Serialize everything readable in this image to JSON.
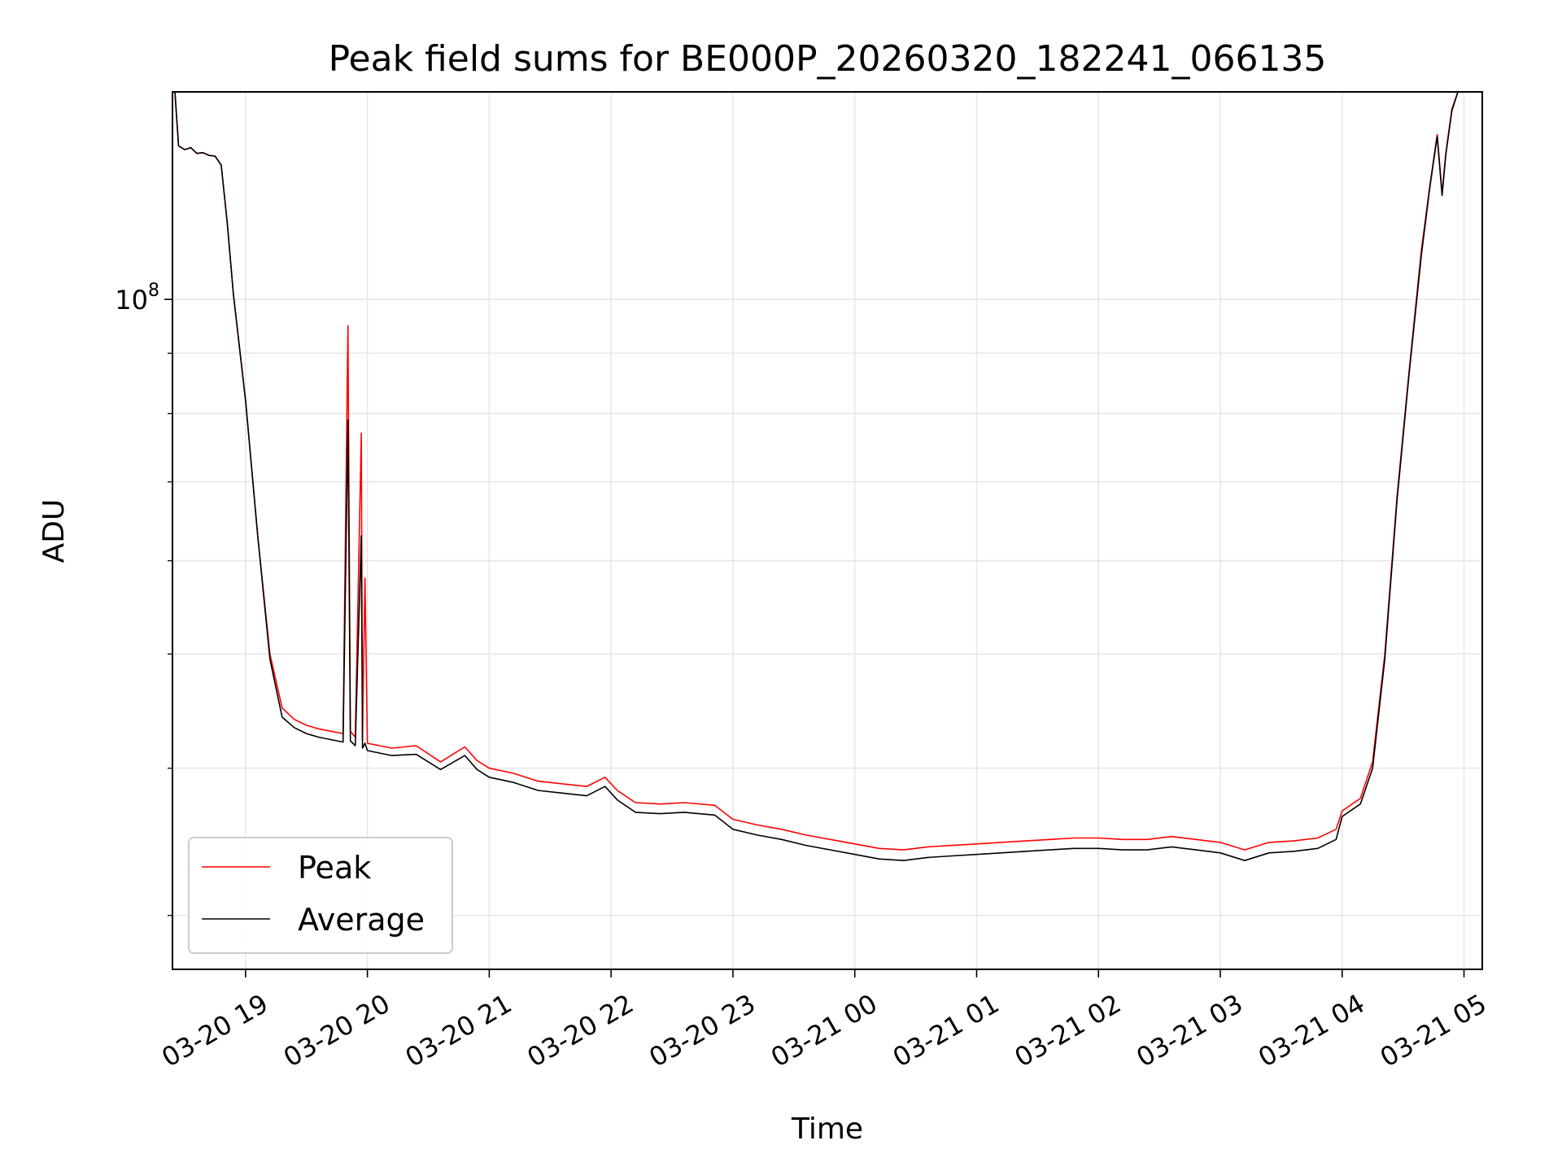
{
  "chart_data": {
    "type": "line",
    "title": "Peak field sums for BE000P_20260320_182241_066135",
    "xlabel": "Time",
    "ylabel": "ADU",
    "yscale": "log",
    "ylim": [
      27000000,
      150000000
    ],
    "xlim_hours": [
      -0.6,
      10.15
    ],
    "y_tick_major": [
      {
        "value": 100000000,
        "base": "10",
        "exp": "8"
      }
    ],
    "y_tick_minor": [
      30000000,
      40000000,
      50000000,
      60000000,
      70000000,
      80000000,
      90000000
    ],
    "x_ticks": [
      {
        "hours": 0,
        "label": "03-20 19"
      },
      {
        "hours": 1,
        "label": "03-20 20"
      },
      {
        "hours": 2,
        "label": "03-20 21"
      },
      {
        "hours": 3,
        "label": "03-20 22"
      },
      {
        "hours": 4,
        "label": "03-20 23"
      },
      {
        "hours": 5,
        "label": "03-21 00"
      },
      {
        "hours": 6,
        "label": "03-21 01"
      },
      {
        "hours": 7,
        "label": "03-21 02"
      },
      {
        "hours": 8,
        "label": "03-21 03"
      },
      {
        "hours": 9,
        "label": "03-21 04"
      },
      {
        "hours": 10,
        "label": "03-21 05"
      }
    ],
    "legend_position": "lower-left",
    "grid": true,
    "series": [
      {
        "name": "Peak",
        "color": "#ff0000",
        "note": "hours relative to 03-20 19:00",
        "x": [
          -0.58,
          -0.55,
          -0.5,
          -0.45,
          -0.4,
          -0.35,
          -0.3,
          -0.25,
          -0.2,
          -0.15,
          -0.1,
          0.0,
          0.1,
          0.2,
          0.3,
          0.4,
          0.5,
          0.6,
          0.7,
          0.8,
          0.84,
          0.86,
          0.9,
          0.95,
          0.96,
          0.98,
          1.0,
          1.2,
          1.4,
          1.6,
          1.8,
          1.9,
          2.0,
          2.2,
          2.4,
          2.6,
          2.8,
          2.95,
          3.05,
          3.2,
          3.4,
          3.6,
          3.85,
          4.0,
          4.2,
          4.4,
          4.6,
          4.8,
          5.0,
          5.2,
          5.4,
          5.6,
          5.8,
          6.0,
          6.2,
          6.4,
          6.6,
          6.8,
          7.0,
          7.2,
          7.4,
          7.6,
          7.8,
          8.0,
          8.2,
          8.4,
          8.6,
          8.8,
          8.95,
          9.0,
          9.15,
          9.25,
          9.35,
          9.45,
          9.55,
          9.65,
          9.72,
          9.78,
          9.82,
          9.85,
          9.9,
          9.95
        ],
        "y": [
          150000000,
          135000000,
          134000000,
          134500000,
          133000000,
          133200000,
          132500000,
          132300000,
          130000000,
          116000000,
          101000000,
          82000000,
          63000000,
          50000000,
          45000000,
          44000000,
          43500000,
          43200000,
          43000000,
          42800000,
          95000000,
          43000000,
          42500000,
          77000000,
          42300000,
          58000000,
          42000000,
          41600000,
          41800000,
          40500000,
          41700000,
          40600000,
          40000000,
          39600000,
          39000000,
          38800000,
          38600000,
          39300000,
          38300000,
          37400000,
          37300000,
          37400000,
          37200000,
          36200000,
          35800000,
          35500000,
          35100000,
          34800000,
          34500000,
          34200000,
          34100000,
          34300000,
          34400000,
          34500000,
          34600000,
          34700000,
          34800000,
          34900000,
          34900000,
          34800000,
          34800000,
          35000000,
          34800000,
          34600000,
          34100000,
          34600000,
          34700000,
          34900000,
          35500000,
          36800000,
          37700000,
          40500000,
          50000000,
          68000000,
          87000000,
          110000000,
          125000000,
          138000000,
          123000000,
          133000000,
          145000000,
          150000000
        ]
      },
      {
        "name": "Average",
        "color": "#000000",
        "note": "hours relative to 03-20 19:00",
        "x": [
          -0.58,
          -0.55,
          -0.5,
          -0.45,
          -0.4,
          -0.35,
          -0.3,
          -0.25,
          -0.2,
          -0.15,
          -0.1,
          0.0,
          0.1,
          0.2,
          0.3,
          0.4,
          0.5,
          0.6,
          0.7,
          0.8,
          0.84,
          0.86,
          0.9,
          0.95,
          0.96,
          0.98,
          1.0,
          1.2,
          1.4,
          1.6,
          1.8,
          1.9,
          2.0,
          2.2,
          2.4,
          2.6,
          2.8,
          2.95,
          3.05,
          3.2,
          3.4,
          3.6,
          3.85,
          4.0,
          4.2,
          4.4,
          4.6,
          4.8,
          5.0,
          5.2,
          5.4,
          5.6,
          5.8,
          6.0,
          6.2,
          6.4,
          6.6,
          6.8,
          7.0,
          7.2,
          7.4,
          7.6,
          7.8,
          8.0,
          8.2,
          8.4,
          8.6,
          8.8,
          8.95,
          9.0,
          9.15,
          9.25,
          9.35,
          9.45,
          9.55,
          9.65,
          9.72,
          9.78,
          9.82,
          9.85,
          9.9,
          9.95
        ],
        "y": [
          150000000,
          135000000,
          134000000,
          134500000,
          133000000,
          133200000,
          132500000,
          132300000,
          130000000,
          116000000,
          101000000,
          82000000,
          63000000,
          49500000,
          44200000,
          43300000,
          42800000,
          42500000,
          42300000,
          42100000,
          79000000,
          42200000,
          41800000,
          63000000,
          41600000,
          42000000,
          41400000,
          41000000,
          41100000,
          39900000,
          41000000,
          39900000,
          39300000,
          38900000,
          38300000,
          38100000,
          37900000,
          38600000,
          37600000,
          36700000,
          36600000,
          36700000,
          36500000,
          35500000,
          35100000,
          34800000,
          34400000,
          34100000,
          33800000,
          33500000,
          33400000,
          33600000,
          33700000,
          33800000,
          33900000,
          34000000,
          34100000,
          34200000,
          34200000,
          34100000,
          34100000,
          34300000,
          34100000,
          33900000,
          33400000,
          33900000,
          34000000,
          34200000,
          34800000,
          36400000,
          37300000,
          40000000,
          49500000,
          67500000,
          86500000,
          109000000,
          124500000,
          137500000,
          122500000,
          132500000,
          144500000,
          150000000
        ]
      }
    ]
  }
}
